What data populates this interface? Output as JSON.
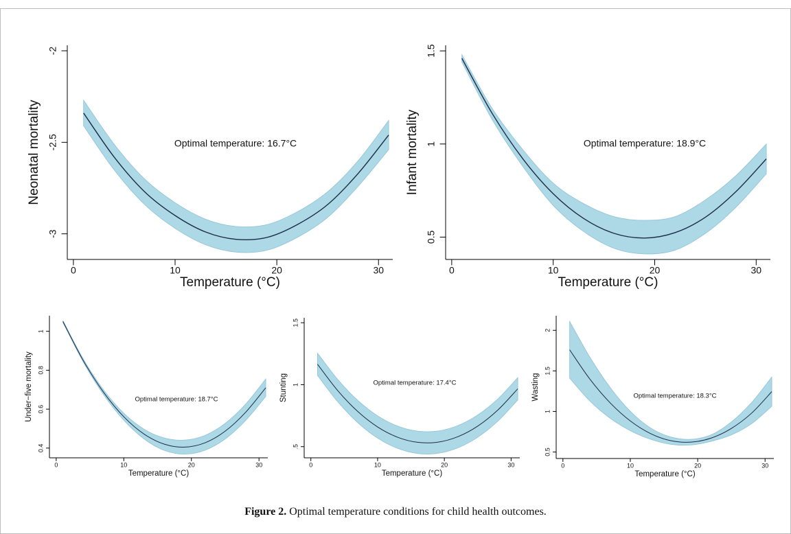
{
  "chart_data": [
    {
      "type": "line",
      "ylabel": "Neonatal mortality",
      "xlabel": "Temperature (°C)",
      "annotation": "Optimal temperature: 16.7°C",
      "x": [
        1,
        4,
        7,
        10,
        13,
        16,
        19,
        22,
        25,
        28,
        31
      ],
      "values": [
        -2.34,
        -2.58,
        -2.77,
        -2.9,
        -2.99,
        -3.03,
        -3.02,
        -2.95,
        -2.84,
        -2.67,
        -2.46
      ],
      "ci_upper": [
        -2.27,
        -2.51,
        -2.7,
        -2.83,
        -2.92,
        -2.96,
        -2.95,
        -2.88,
        -2.77,
        -2.6,
        -2.38
      ],
      "ci_lower": [
        -2.41,
        -2.65,
        -2.84,
        -2.97,
        -3.06,
        -3.1,
        -3.09,
        -3.02,
        -2.91,
        -2.74,
        -2.54
      ],
      "line_color": "#1c2a48",
      "band_color": "#add8e6",
      "xlim": [
        -0.6,
        31.4
      ],
      "xticks": [
        0,
        10,
        20,
        30
      ],
      "ylim": [
        -3.14,
        -1.97
      ],
      "yticks": [
        -3,
        -2.5,
        -2
      ]
    },
    {
      "type": "line",
      "ylabel": "Infant mortality",
      "xlabel": "Temperature (°C)",
      "annotation": "Optimal temperature: 18.9°C",
      "x": [
        1,
        4,
        7,
        10,
        13,
        16,
        19,
        22,
        25,
        28,
        31
      ],
      "values": [
        1.46,
        1.163,
        0.921,
        0.733,
        0.6,
        0.52,
        0.495,
        0.524,
        0.607,
        0.744,
        0.92
      ],
      "ci_upper": [
        1.48,
        1.19,
        0.97,
        0.79,
        0.68,
        0.61,
        0.59,
        0.61,
        0.7,
        0.83,
        1.0
      ],
      "ci_lower": [
        1.44,
        1.13,
        0.88,
        0.67,
        0.53,
        0.44,
        0.41,
        0.43,
        0.52,
        0.66,
        0.84
      ],
      "line_color": "#1c2a48",
      "band_color": "#add8e6",
      "xlim": [
        -0.6,
        31.4
      ],
      "xticks": [
        0,
        10,
        20,
        30
      ],
      "ylim": [
        0.38,
        1.53
      ],
      "yticks": [
        0.5,
        1,
        1.5
      ]
    },
    {
      "type": "line",
      "ylabel": "Under−five mortality",
      "xlabel": "Temperature (°C)",
      "annotation": "Optimal temperature: 18.7°C",
      "x": [
        1,
        4,
        7,
        10,
        13,
        16,
        19,
        22,
        25,
        28,
        31
      ],
      "values": [
        1.05,
        0.85,
        0.687,
        0.561,
        0.472,
        0.42,
        0.405,
        0.427,
        0.487,
        0.583,
        0.71
      ],
      "ci_upper": [
        1.055,
        0.858,
        0.699,
        0.579,
        0.497,
        0.452,
        0.441,
        0.465,
        0.527,
        0.625,
        0.755
      ],
      "ci_lower": [
        1.045,
        0.842,
        0.675,
        0.543,
        0.447,
        0.388,
        0.369,
        0.389,
        0.447,
        0.541,
        0.665
      ],
      "line_color": "#1c2a48",
      "band_color": "#add8e6",
      "xlim": [
        -1,
        31.3
      ],
      "xticks": [
        0,
        10,
        20,
        30
      ],
      "ylim": [
        0.35,
        1.08
      ],
      "yticks": [
        0.4,
        0.6,
        0.8,
        1
      ]
    },
    {
      "type": "line",
      "ylabel": "Stunting",
      "xlabel": "Temperature (°C)",
      "annotation": "Optimal temperature: 17.4°C",
      "x": [
        1,
        4,
        7,
        10,
        13,
        16,
        19,
        22,
        25,
        28,
        31
      ],
      "values": [
        1.165,
        0.954,
        0.785,
        0.659,
        0.576,
        0.535,
        0.536,
        0.58,
        0.666,
        0.795,
        0.967
      ],
      "ci_upper": [
        1.255,
        1.044,
        0.875,
        0.749,
        0.666,
        0.625,
        0.626,
        0.67,
        0.756,
        0.885,
        1.057
      ],
      "ci_lower": [
        1.075,
        0.864,
        0.695,
        0.569,
        0.486,
        0.445,
        0.446,
        0.49,
        0.576,
        0.705,
        0.877
      ],
      "line_color": "#1c2a48",
      "band_color": "#add8e6",
      "xlim": [
        -1,
        31.3
      ],
      "xticks": [
        0,
        10,
        20,
        30
      ],
      "ylim": [
        0.41,
        1.54
      ],
      "yticks": [
        {
          "value": 0.5,
          "label": ".5"
        },
        1,
        1.5
      ]
    },
    {
      "type": "line",
      "ylabel": "Wasting",
      "xlabel": "Temperature (°C)",
      "annotation": "Optimal temperature: 18.3°C",
      "x": [
        1,
        4,
        7,
        10,
        13,
        16,
        19,
        22,
        25,
        28,
        31
      ],
      "values": [
        1.76,
        1.399,
        1.107,
        0.883,
        0.727,
        0.64,
        0.622,
        0.672,
        0.791,
        0.979,
        1.245
      ],
      "ci_upper": [
        2.11,
        1.669,
        1.297,
        1.003,
        0.797,
        0.685,
        0.657,
        0.712,
        0.871,
        1.109,
        1.425
      ],
      "ci_lower": [
        1.41,
        1.129,
        0.917,
        0.763,
        0.657,
        0.595,
        0.587,
        0.632,
        0.711,
        0.849,
        1.065
      ],
      "line_color": "#1c2a48",
      "band_color": "#add8e6",
      "xlim": [
        -1,
        31.3
      ],
      "xticks": [
        0,
        10,
        20,
        30
      ],
      "ylim": [
        0.42,
        2.18
      ],
      "yticks": [
        0.5,
        1,
        1.5,
        2
      ]
    }
  ],
  "caption": {
    "label": "Figure 2.",
    "text": "Optimal temperature conditions for child health outcomes."
  }
}
